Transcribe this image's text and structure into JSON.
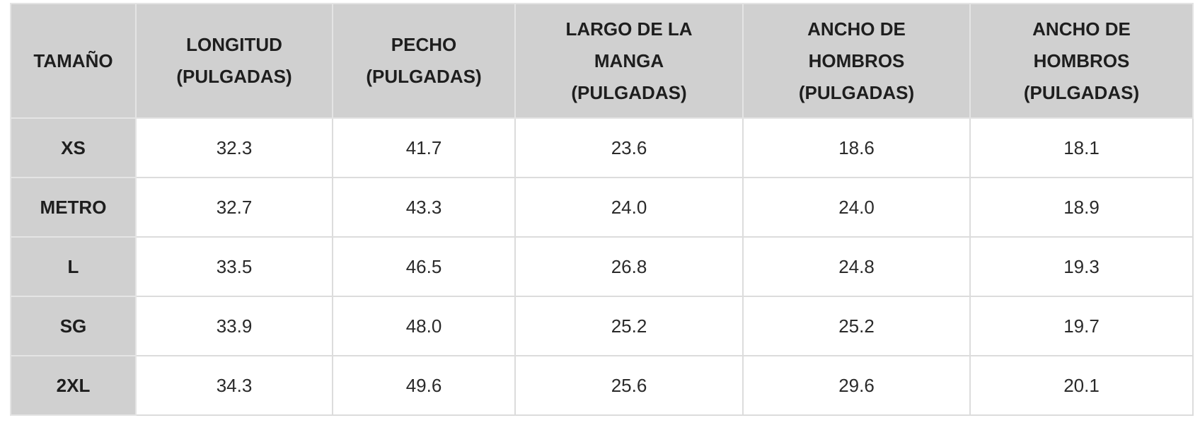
{
  "table": {
    "headers": [
      "TAMAÑO",
      "LONGITUD (PULGADAS)",
      "PECHO (PULGADAS)",
      "LARGO DE LA MANGA (PULGADAS)",
      "ANCHO DE HOMBROS (PULGADAS)",
      "ANCHO DE HOMBROS (PULGADAS)"
    ],
    "rows": [
      {
        "size": "XS",
        "values": [
          "32.3",
          "41.7",
          "23.6",
          "18.6",
          "18.1"
        ]
      },
      {
        "size": "METRO",
        "values": [
          "32.7",
          "43.3",
          "24.0",
          "24.0",
          "18.9"
        ]
      },
      {
        "size": "L",
        "values": [
          "33.5",
          "46.5",
          "26.8",
          "24.8",
          "19.3"
        ]
      },
      {
        "size": "SG",
        "values": [
          "33.9",
          "48.0",
          "25.2",
          "25.2",
          "19.7"
        ]
      },
      {
        "size": "2XL",
        "values": [
          "34.3",
          "49.6",
          "25.6",
          "29.6",
          "20.1"
        ]
      }
    ]
  },
  "colors": {
    "header_bg": "#d0d0d0",
    "cell_bg": "#ffffff",
    "border": "#dcdcdc",
    "text": "#1e1e1e"
  }
}
